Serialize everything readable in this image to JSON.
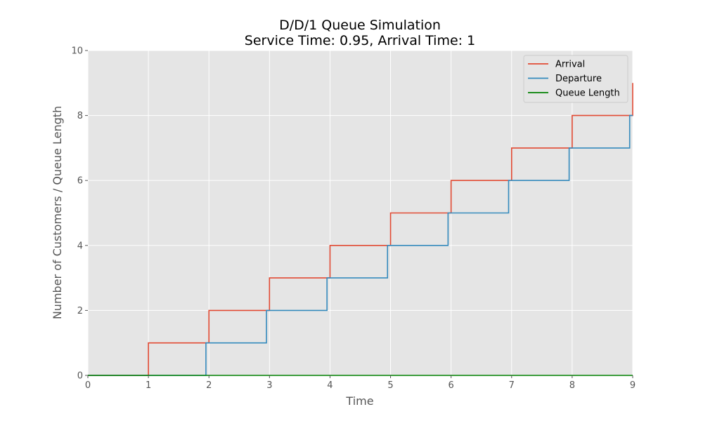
{
  "chart_data": {
    "type": "line",
    "title": "D/D/1 Queue Simulation",
    "subtitle": "Service Time: 0.95, Arrival Time: 1",
    "xlabel": "Time",
    "ylabel": "Number of Customers / Queue Length",
    "xlim": [
      0,
      9
    ],
    "ylim": [
      0,
      10
    ],
    "xticks": [
      "0",
      "1",
      "2",
      "3",
      "4",
      "5",
      "6",
      "7",
      "8",
      "9"
    ],
    "yticks": [
      "0",
      "2",
      "4",
      "6",
      "8",
      "10"
    ],
    "grid": true,
    "legend_position": "top-right",
    "series": [
      {
        "name": "Arrival",
        "color": "#E24A33",
        "step": "post",
        "x": [
          0,
          1,
          2,
          3,
          4,
          5,
          6,
          7,
          8,
          9
        ],
        "y": [
          0,
          1,
          2,
          3,
          4,
          5,
          6,
          7,
          8,
          9
        ]
      },
      {
        "name": "Departure",
        "color": "#348ABD",
        "step": "post",
        "x": [
          0,
          1.95,
          2.95,
          3.95,
          4.95,
          5.95,
          6.95,
          7.95,
          8.95,
          9
        ],
        "y": [
          0,
          1,
          2,
          3,
          4,
          5,
          6,
          7,
          8,
          8
        ]
      },
      {
        "name": "Queue Length",
        "color": "#008000",
        "step": "post",
        "x": [
          0,
          9
        ],
        "y": [
          0,
          0
        ]
      }
    ]
  }
}
